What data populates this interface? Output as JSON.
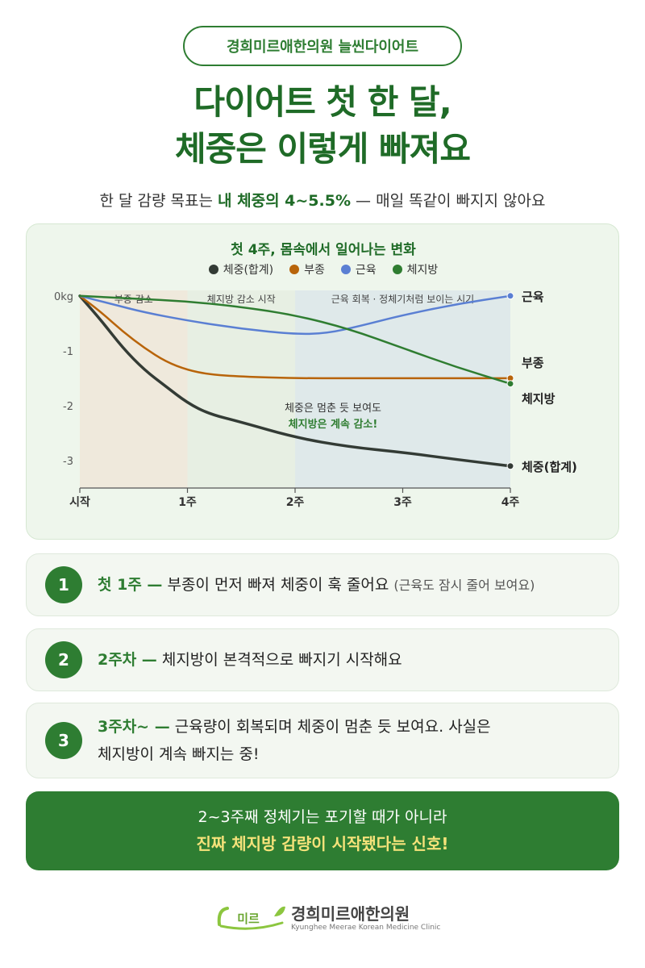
{
  "badge": "경희미르애한의원 늘씬다이어트",
  "headline": {
    "line1": "다이어트 첫 한 달,",
    "line2": "체중은 이렇게 빠져요"
  },
  "subline": {
    "before": "한 달 감량 목표는 ",
    "bold": "내 체중의 4~5.5%",
    "after": " — 매일 똑같이 빠지지 않아요"
  },
  "chart_data": {
    "type": "line",
    "title": "첫 4주, 몸속에서 일어나는 변화",
    "x": [
      "시작",
      "1주",
      "2주",
      "3주",
      "4주"
    ],
    "x_numeric": [
      0,
      1,
      2,
      3,
      4
    ],
    "ylim": [
      -3.5,
      0.1
    ],
    "y_ticks": [
      0,
      -1,
      -2,
      -3
    ],
    "y_tick_labels": [
      "0kg",
      "-1",
      "-2",
      "-3"
    ],
    "grid": false,
    "legend_position": "top-center",
    "series": [
      {
        "name": "체중(합계)",
        "end_label": "체중(합계)",
        "color": "#333b35",
        "points": [
          [
            0,
            0
          ],
          [
            0.2,
            -0.45
          ],
          [
            0.4,
            -0.95
          ],
          [
            0.6,
            -1.35
          ],
          [
            0.8,
            -1.65
          ],
          [
            1,
            -1.95
          ],
          [
            1.2,
            -2.15
          ],
          [
            1.5,
            -2.3
          ],
          [
            2,
            -2.58
          ],
          [
            2.5,
            -2.75
          ],
          [
            3,
            -2.85
          ],
          [
            3.5,
            -2.98
          ],
          [
            4,
            -3.1
          ]
        ]
      },
      {
        "name": "부종",
        "end_label": "부종",
        "color": "#b8640a",
        "points": [
          [
            0,
            0
          ],
          [
            0.2,
            -0.3
          ],
          [
            0.4,
            -0.65
          ],
          [
            0.6,
            -0.95
          ],
          [
            0.8,
            -1.2
          ],
          [
            1,
            -1.35
          ],
          [
            1.2,
            -1.43
          ],
          [
            1.5,
            -1.47
          ],
          [
            2,
            -1.5
          ],
          [
            2.5,
            -1.5
          ],
          [
            3,
            -1.5
          ],
          [
            3.5,
            -1.5
          ],
          [
            4,
            -1.5
          ]
        ]
      },
      {
        "name": "근육",
        "end_label": "근육",
        "color": "#5a7fd3",
        "points": [
          [
            0,
            0
          ],
          [
            0.3,
            -0.15
          ],
          [
            0.6,
            -0.3
          ],
          [
            1,
            -0.45
          ],
          [
            1.5,
            -0.6
          ],
          [
            2,
            -0.7
          ],
          [
            2.3,
            -0.68
          ],
          [
            2.6,
            -0.55
          ],
          [
            3,
            -0.35
          ],
          [
            3.5,
            -0.15
          ],
          [
            4,
            0
          ]
        ]
      },
      {
        "name": "체지방",
        "end_label": "체지방",
        "color": "#2f7d31",
        "points": [
          [
            0,
            0
          ],
          [
            0.5,
            -0.05
          ],
          [
            1,
            -0.1
          ],
          [
            1.5,
            -0.2
          ],
          [
            2,
            -0.35
          ],
          [
            2.5,
            -0.6
          ],
          [
            3,
            -0.95
          ],
          [
            3.5,
            -1.3
          ],
          [
            4,
            -1.6
          ]
        ]
      }
    ],
    "phases": [
      {
        "label": "부종 감소",
        "from": 0,
        "to": 1,
        "color": "#efe9dc"
      },
      {
        "label": "체지방 감소 시작",
        "from": 1,
        "to": 2,
        "color": "#e7efe3"
      },
      {
        "label": "근육 회복 · 정체기처럼 보이는 시기",
        "from": 2,
        "to": 4,
        "color": "#dfe9ea"
      }
    ],
    "annotation": {
      "line1": "체중은 멈춘 듯 보여도",
      "line2": "체지방은 계속 감소!",
      "line2_color": "#2f7d31"
    }
  },
  "steps": [
    {
      "num": "1",
      "highlight": "첫 1주 —",
      "text": " 부종이 먼저 빠져 체중이 훅 줄어요 ",
      "note": "(근육도 잠시 줄어 보여요)"
    },
    {
      "num": "2",
      "highlight": "2주차 —",
      "text": " 체지방이 본격적으로 빠지기 시작해요",
      "note": ""
    },
    {
      "num": "3",
      "highlight": "3주차~ —",
      "text": " 근육량이 회복되며 체중이 멈춘 듯 보여요. 사실은",
      "line2": "체지방이 계속 빠지는 중!",
      "note": ""
    }
  ],
  "banner": {
    "line1": "2~3주째 정체기는 포기할 때가 아니라",
    "line2": "진짜 체지방 감량이 시작됐다는 신호!"
  },
  "footer": {
    "logo_mark": "미르",
    "name": "경희미르애한의원",
    "sub": "Kyunghee Meerae Korean Medicine Clinic"
  },
  "colors": {
    "brand_green": "#2e7d32",
    "banner_accent": "#f5e27a",
    "card_bg": "#eef6ec"
  }
}
